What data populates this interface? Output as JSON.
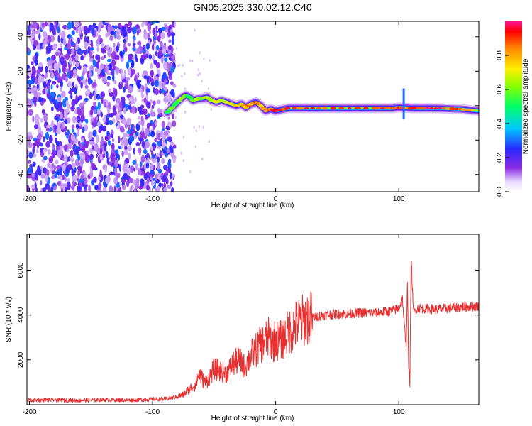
{
  "chart_data": [
    {
      "type": "heatmap",
      "title": "GN05.2025.330.02.12.C40",
      "xlabel": "Height of straight line (km)",
      "ylabel": "Frequency (Hz)",
      "xlim": [
        -202,
        165
      ],
      "ylim": [
        -50,
        49
      ],
      "xticks": [
        -200,
        -100,
        0,
        100
      ],
      "yticks": [
        -40,
        -20,
        0,
        20,
        40
      ],
      "noise_region_x": [
        -202,
        -82
      ],
      "signal_ridge": {
        "x": [
          -88,
          -84,
          -80,
          -77,
          -73,
          -70,
          -67,
          -63,
          -60,
          -56,
          -52,
          -48,
          -44,
          -40,
          -36,
          -32,
          -28,
          -24,
          -20,
          -16,
          -12,
          -8,
          -4,
          0,
          10,
          40,
          80,
          95,
          100,
          110,
          130,
          150,
          165
        ],
        "freq": [
          -4,
          -1,
          2,
          4,
          6,
          5,
          3,
          4,
          4,
          5,
          3,
          2,
          3,
          2,
          1,
          0,
          1,
          -1,
          1,
          2,
          0,
          -3,
          -2,
          -3,
          -1.5,
          -1.5,
          -1.5,
          -1.5,
          -1,
          -1.5,
          -1.5,
          -2,
          -3
        ],
        "amp": [
          0.5,
          0.6,
          0.55,
          0.7,
          0.65,
          0.5,
          0.6,
          0.7,
          0.6,
          0.65,
          0.7,
          0.75,
          0.7,
          0.75,
          0.8,
          0.75,
          0.8,
          0.8,
          0.85,
          0.9,
          0.85,
          0.9,
          0.9,
          0.95,
          0.95,
          0.95,
          0.95,
          0.9,
          0.9,
          0.95,
          0.95,
          0.9,
          0.7
        ]
      },
      "colorbar": {
        "label": "Normalized spectral amplitude",
        "range": [
          0,
          1
        ],
        "ticks": [
          "0.0",
          "0.2",
          "0.4",
          "0.6",
          "0.8"
        ]
      }
    },
    {
      "type": "line",
      "xlabel": "Height of straight line (km)",
      "ylabel": "SNR (10 * v/v)",
      "xlim": [
        -202,
        165
      ],
      "ylim": [
        0,
        7600
      ],
      "xticks": [
        -200,
        -100,
        0,
        100
      ],
      "yticks": [
        2000,
        4000,
        6000
      ],
      "color": "#e83030",
      "series": [
        {
          "name": "SNR",
          "x": [
            -202,
            -180,
            -160,
            -140,
            -120,
            -100,
            -90,
            -80,
            -75,
            -70,
            -65,
            -62,
            -60,
            -58,
            -55,
            -50,
            -45,
            -40,
            -35,
            -30,
            -25,
            -20,
            -15,
            -10,
            -5,
            -2,
            0,
            2,
            5,
            10,
            15,
            20,
            25,
            30,
            35,
            40,
            50,
            60,
            70,
            80,
            90,
            95,
            100,
            103,
            105,
            106,
            107,
            108,
            109,
            110,
            112,
            115,
            120,
            130,
            140,
            150,
            165
          ],
          "y": [
            200,
            210,
            190,
            220,
            200,
            240,
            250,
            350,
            450,
            700,
            900,
            1400,
            1200,
            1000,
            1100,
            1600,
            1500,
            1400,
            1800,
            2000,
            1700,
            2200,
            2500,
            2800,
            3000,
            2700,
            3000,
            2800,
            2900,
            3200,
            3500,
            3700,
            3850,
            3900,
            3950,
            4000,
            4050,
            4050,
            4100,
            4100,
            4150,
            4200,
            4300,
            4700,
            3200,
            2400,
            5600,
            1800,
            900,
            6500,
            4100,
            4300,
            4300,
            4250,
            4300,
            4350,
            4400
          ]
        }
      ]
    }
  ]
}
